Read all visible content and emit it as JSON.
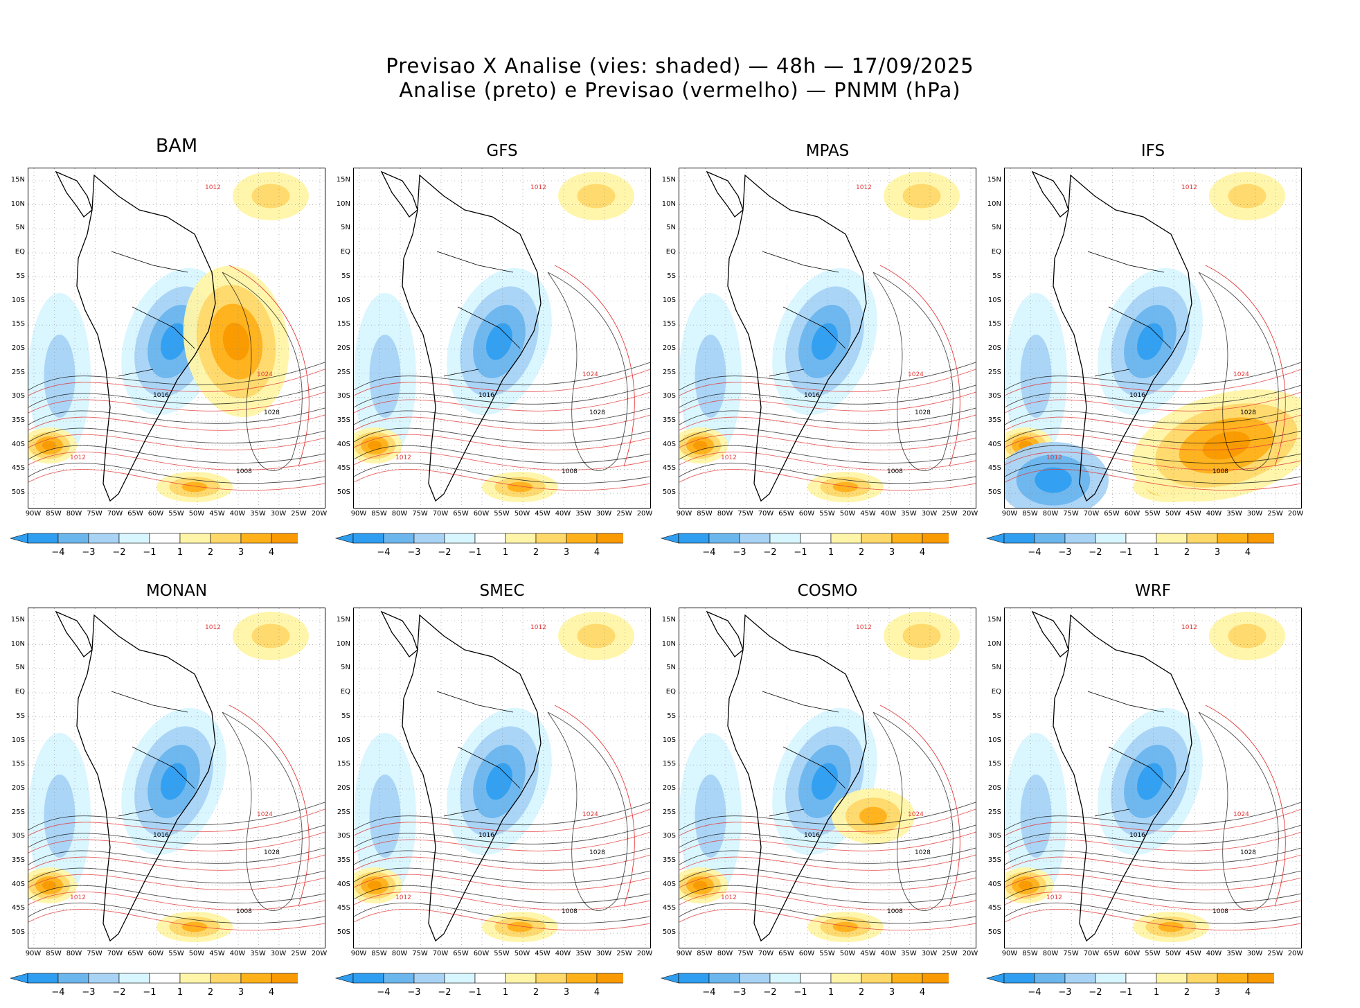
{
  "header": {
    "title_line1": "Previsao X Analise (vies: shaded) — 48h — 17/09/2025",
    "title_line2": "Analise (preto) e Previsao (vermelho) — PNMM (hPa)"
  },
  "panels": [
    {
      "model": "BAM",
      "warm_bias_region": "east-brazil"
    },
    {
      "model": "GFS",
      "warm_bias_region": "none"
    },
    {
      "model": "MPAS",
      "warm_bias_region": "none"
    },
    {
      "model": "IFS",
      "warm_bias_region": "south-atlantic"
    },
    {
      "model": "MONAN",
      "warm_bias_region": "none"
    },
    {
      "model": "SMEC",
      "warm_bias_region": "none"
    },
    {
      "model": "COSMO",
      "warm_bias_region": "south-brazil"
    },
    {
      "model": "WRF",
      "warm_bias_region": "none"
    }
  ],
  "axes": {
    "lat_labels": [
      "15N",
      "10N",
      "5N",
      "EQ",
      "5S",
      "10S",
      "15S",
      "20S",
      "25S",
      "30S",
      "35S",
      "40S",
      "45S",
      "50S"
    ],
    "lon_labels": [
      "90W",
      "85W",
      "80W",
      "75W",
      "70W",
      "65W",
      "60W",
      "55W",
      "50W",
      "45W",
      "40W",
      "35W",
      "30W",
      "25W",
      "20W"
    ]
  },
  "colorbar": {
    "labels": [
      "−4",
      "−3",
      "−2",
      "−1",
      "1",
      "2",
      "3",
      "4"
    ],
    "colors": [
      "#2f9ef0",
      "#6cb6ee",
      "#a9d3f5",
      "#d8f6ff",
      "#ffffff",
      "#fff5a8",
      "#ffd86a",
      "#ffb11a",
      "#f99a00"
    ]
  },
  "contours": {
    "analysis_color": "#000000",
    "forecast_color": "#e23a3a",
    "levels_shown": [
      "1008",
      "1012",
      "1016",
      "1020",
      "1024",
      "1028",
      "1032"
    ]
  }
}
